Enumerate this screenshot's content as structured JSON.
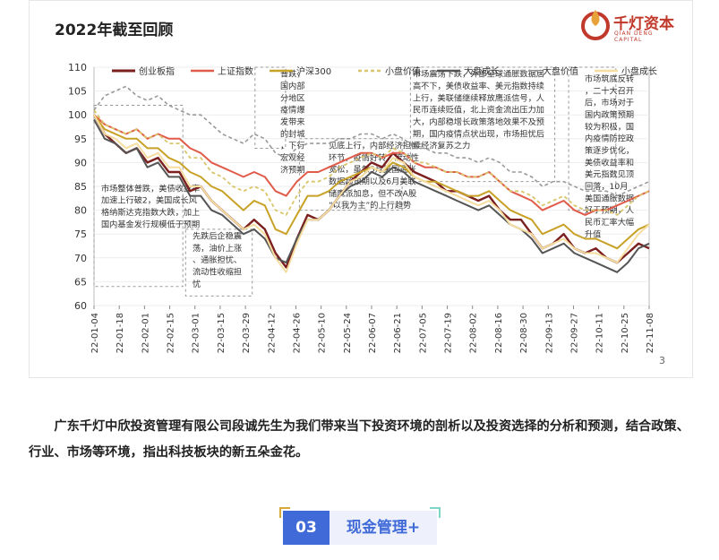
{
  "slide": {
    "title": "2022年截至回顾",
    "page_number": "3",
    "logo": {
      "name": "千灯资本",
      "sub": "QIAN DENG CAPITAL",
      "icon": "qiandeng-logo-icon",
      "color": "#c0392b"
    }
  },
  "chart_data": {
    "type": "line",
    "title": "",
    "xlabel": "",
    "ylabel": "",
    "ylim": [
      60,
      110
    ],
    "yticks": [
      60,
      65,
      70,
      75,
      80,
      85,
      90,
      95,
      100,
      105,
      110
    ],
    "xticks": [
      "22-01-04",
      "22-01-18",
      "22-02-01",
      "22-02-15",
      "22-03-01",
      "22-03-15",
      "22-03-29",
      "22-04-12",
      "22-04-26",
      "22-05-10",
      "22-05-24",
      "22-06-07",
      "22-06-21",
      "22-07-05",
      "22-07-19",
      "22-08-02",
      "22-08-16",
      "22-08-30",
      "22-09-13",
      "22-09-27",
      "22-10-11",
      "22-10-25",
      "22-11-08"
    ],
    "legend_position": "top",
    "series": [
      {
        "name": "创业板指",
        "color": "#7b1f1f",
        "dash": "solid",
        "width": 2.4,
        "values": [
          100,
          96,
          94,
          92,
          93,
          90,
          91,
          88,
          88,
          84,
          85,
          82,
          80,
          78,
          76,
          78,
          76,
          71,
          68,
          74,
          79,
          78,
          80,
          83,
          86,
          88,
          90,
          89,
          92,
          90,
          88,
          87,
          86,
          84,
          84,
          83,
          82,
          83,
          80,
          78,
          78,
          75,
          72,
          73,
          75,
          72,
          71,
          72,
          70,
          69,
          71,
          73,
          72
        ]
      },
      {
        "name": "上证指数",
        "color": "#e15b4a",
        "dash": "solid",
        "width": 2.0,
        "values": [
          100,
          98,
          97,
          96,
          97,
          95,
          96,
          95,
          95,
          93,
          92,
          90,
          89,
          88,
          87,
          88,
          87,
          84,
          83,
          86,
          88,
          88,
          89,
          90,
          91,
          92,
          92,
          91,
          92,
          92,
          90,
          89,
          89,
          88,
          88,
          87,
          87,
          88,
          86,
          84,
          83,
          82,
          80,
          81,
          82,
          80,
          79,
          80,
          80,
          81,
          82,
          83,
          84
        ]
      },
      {
        "name": "沪深300",
        "color": "#c8a227",
        "dash": "solid",
        "width": 2.0,
        "values": [
          100,
          97,
          96,
          95,
          95,
          93,
          93,
          91,
          90,
          88,
          87,
          85,
          84,
          82,
          80,
          82,
          81,
          76,
          75,
          79,
          83,
          83,
          84,
          86,
          87,
          88,
          89,
          88,
          90,
          89,
          87,
          86,
          86,
          85,
          84,
          83,
          83,
          84,
          82,
          80,
          79,
          78,
          75,
          76,
          77,
          75,
          74,
          74,
          73,
          72,
          74,
          76,
          77
        ]
      },
      {
        "name": "小盘价值",
        "color": "#d9c56a",
        "dash": "dash",
        "width": 1.8,
        "values": [
          101,
          98,
          97,
          96,
          97,
          95,
          96,
          94,
          94,
          91,
          91,
          88,
          87,
          85,
          84,
          85,
          84,
          80,
          79,
          83,
          86,
          86,
          87,
          89,
          90,
          91,
          92,
          91,
          93,
          92,
          90,
          90,
          89,
          88,
          88,
          87,
          87,
          88,
          86,
          84,
          84,
          83,
          81,
          82,
          83,
          81,
          80,
          80,
          80,
          79,
          81,
          83,
          84
        ]
      },
      {
        "name": "大盘成长",
        "color": "#555555",
        "dash": "solid",
        "width": 2.0,
        "values": [
          99,
          95,
          94,
          92,
          93,
          89,
          90,
          87,
          87,
          83,
          83,
          80,
          79,
          77,
          75,
          76,
          74,
          70,
          69,
          74,
          78,
          78,
          80,
          83,
          85,
          86,
          88,
          87,
          89,
          88,
          86,
          85,
          84,
          83,
          82,
          81,
          80,
          81,
          79,
          77,
          76,
          74,
          71,
          72,
          73,
          71,
          70,
          69,
          68,
          67,
          69,
          72,
          73
        ]
      },
      {
        "name": "大盘价值",
        "color": "#999999",
        "dash": "dash",
        "width": 1.6,
        "values": [
          101,
          104,
          105,
          106,
          104,
          103,
          104,
          102,
          101,
          100,
          100,
          98,
          96,
          95,
          94,
          96,
          95,
          92,
          91,
          93,
          94,
          94,
          94,
          95,
          95,
          96,
          96,
          95,
          96,
          95,
          93,
          93,
          92,
          92,
          91,
          91,
          90,
          91,
          90,
          88,
          88,
          87,
          85,
          86,
          86,
          85,
          84,
          84,
          84,
          83,
          84,
          85,
          86
        ]
      },
      {
        "name": "小盘成长",
        "color": "#f6dda0",
        "dash": "solid",
        "width": 2.0,
        "values": [
          100,
          96,
          95,
          93,
          94,
          91,
          92,
          89,
          89,
          85,
          85,
          82,
          80,
          78,
          76,
          77,
          75,
          70,
          67,
          73,
          78,
          78,
          80,
          83,
          86,
          87,
          89,
          88,
          91,
          90,
          87,
          86,
          85,
          84,
          83,
          82,
          81,
          82,
          80,
          77,
          76,
          75,
          72,
          73,
          74,
          72,
          71,
          71,
          70,
          69,
          72,
          75,
          77
        ]
      }
    ],
    "annotations": [
      {
        "text": "市场整体普跌，美债收益率加速上行破2，美国成长风格纳斯达克指数大跌，加上国内基金发行规模低于预期"
      },
      {
        "text": "普跌，国内部分地区疫情爆发带来的封城，下行宏观经济预期"
      },
      {
        "text": "先跌后企稳震荡，油价上涨、通胀担忧、流动性收缩担忧"
      },
      {
        "text": "见底上行，内部经济担忧环节，疫情好转，流动性宽松，虽然5月美国通胀数据超预期以及6月美联储鹰派加息，但不改A股“以我为主”的上行趋势"
      },
      {
        "text": "市场震荡下跌，外部全球通胀数据居高不下，美债收益率、美元指数持续上行，美联储继续释放鹰派信号，人民币连续贬值，北上资金流出压力加大，内部稳增长政策落地效果不及预期，国内疫情点状出现，市场担忧后续经济复苏之力"
      },
      {
        "text": "市场筑底反转，二十大召开后，市场对于国内政策预期较为积极，国内疫情防控政策逐步优化，美债收益率和美元指数见顶回落，10月美国通胀数据好于预期，人民币汇率大幅升值"
      }
    ]
  },
  "paragraph": {
    "text": "广东千灯中欣投资管理有限公司段诚先生为我们带来当下投资环境的剖析以及投资选择的分析和预测，结合政策、行业、市场等环境，指出科技板块的新五朵金花。"
  },
  "section": {
    "number": "03",
    "label": "现金管理+"
  }
}
